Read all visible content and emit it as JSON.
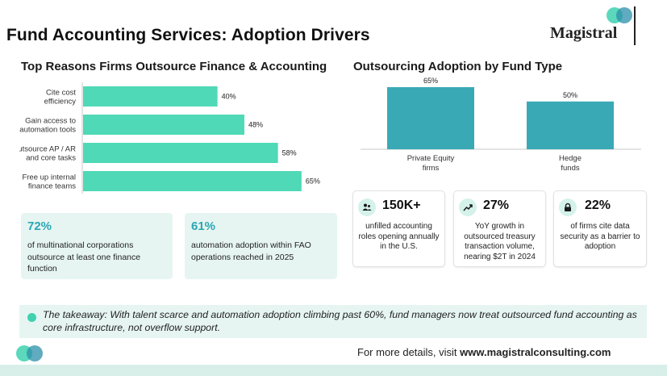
{
  "header": {
    "title": "Fund Accounting Services: Adoption Drivers",
    "brand": "Magistral"
  },
  "left_section": {
    "title": "Top Reasons Firms Outsource Finance & Accounting"
  },
  "right_section": {
    "title": "Outsourcing Adoption by Fund Type"
  },
  "chart_data": [
    {
      "type": "bar",
      "orientation": "horizontal",
      "title": "Top Reasons Firms Outsource Finance & Accounting",
      "categories": [
        [
          "Cite cost",
          "efficiency"
        ],
        [
          "Gain access to",
          "automation tools"
        ],
        [
          "Outsource AP / AR",
          "and core tasks"
        ],
        [
          "Free up internal",
          "finance teams"
        ]
      ],
      "values": [
        40,
        48,
        58,
        65
      ],
      "value_labels": [
        "40%",
        "48%",
        "58%",
        "65%"
      ],
      "unit": "%",
      "xlim": [
        0,
        72
      ],
      "color": "#4fd9b6",
      "grid": false,
      "legend": "none"
    },
    {
      "type": "bar",
      "orientation": "vertical",
      "title": "Outsourcing Adoption by Fund Type",
      "categories": [
        [
          "Private Equity",
          "firms"
        ],
        [
          "Hedge",
          "funds"
        ]
      ],
      "values": [
        65,
        50
      ],
      "value_labels": [
        "65%",
        "50%"
      ],
      "unit": "%",
      "ylim": [
        0,
        65
      ],
      "color": "#3aa9b6",
      "grid": false,
      "legend": "none"
    }
  ],
  "stat_cards": [
    {
      "value": "72%",
      "text": "of multinational corporations outsource at least one finance function"
    },
    {
      "value": "61%",
      "text": "automation adoption within FAO operations reached in 2025"
    }
  ],
  "mini_cards": [
    {
      "icon": "people-icon",
      "value": "150K+",
      "text": "unfilled accounting roles opening annually in the U.S."
    },
    {
      "icon": "trend-up-icon",
      "value": "27%",
      "text": "YoY growth in outsourced treasury transaction volume, nearing $2T in 2024"
    },
    {
      "icon": "lock-icon",
      "value": "22%",
      "text": "of firms cite data security as a barrier to adoption"
    }
  ],
  "takeaway": {
    "text": "The takeaway: With talent scarce and automation adoption climbing past 60%, fund managers now treat outsourced fund accounting as core infrastructure, not overflow support."
  },
  "footer": {
    "prefix": "For more details, visit ",
    "url": "www.magistralconsulting.com"
  },
  "colors": {
    "accent_green": "#4fd9b6",
    "accent_teal": "#3aa9b6",
    "card_bg": "#e6f5f1"
  }
}
